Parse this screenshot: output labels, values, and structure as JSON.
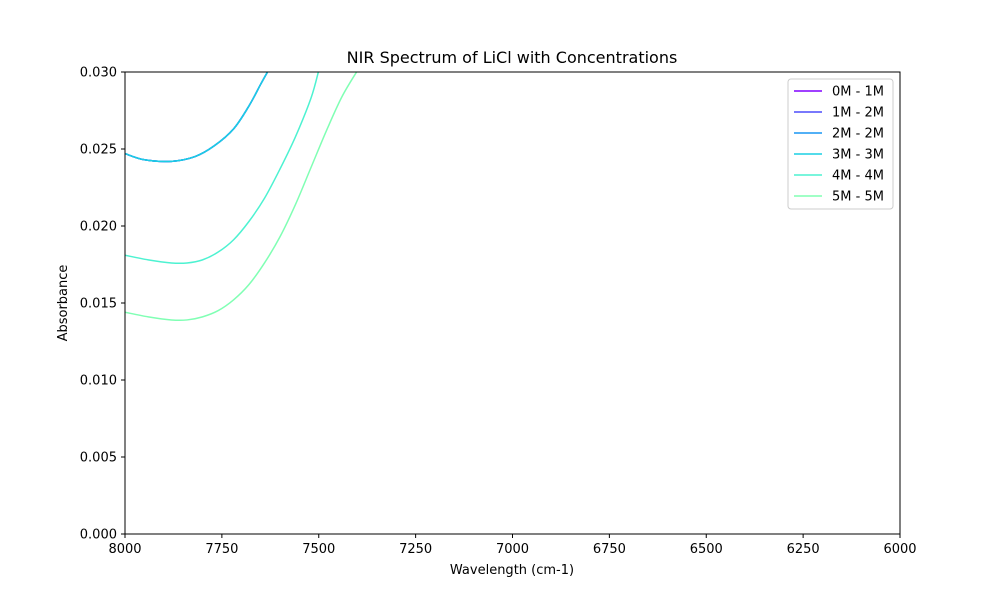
{
  "chart_data": {
    "type": "line",
    "title": "NIR Spectrum of LiCl with Concentrations",
    "xlabel": "Wavelength (cm-1)",
    "ylabel": "Absorbance",
    "xlim": [
      8000,
      6000
    ],
    "ylim": [
      0,
      0.03
    ],
    "x_inverted": true,
    "xticks": [
      8000,
      7750,
      7500,
      7250,
      7000,
      6750,
      6500,
      6250,
      6000
    ],
    "xtick_labels": [
      "8000",
      "7750",
      "7500",
      "7250",
      "7000",
      "6750",
      "6500",
      "6250",
      "6000"
    ],
    "yticks": [
      0,
      0.005,
      0.01,
      0.015,
      0.02,
      0.025,
      0.03
    ],
    "ytick_labels": [
      "0.000",
      "0.005",
      "0.010",
      "0.015",
      "0.020",
      "0.025",
      "0.030"
    ],
    "grid": false,
    "legend_position": "top-right",
    "series": [
      {
        "name": "0M - 1M",
        "color": "#8000ff",
        "x": [
          8000,
          7950,
          7880,
          7820,
          7770,
          7720,
          7680,
          7650,
          7630
        ],
        "y": [
          0.0247,
          0.0243,
          0.0242,
          0.0245,
          0.0252,
          0.0263,
          0.0278,
          0.0292,
          0.0301
        ]
      },
      {
        "name": "1M - 2M",
        "color": "#4d4dfc",
        "x": [
          8000,
          7950,
          7880,
          7820,
          7770,
          7720,
          7680,
          7650,
          7630
        ],
        "y": [
          0.0247,
          0.0243,
          0.0242,
          0.0245,
          0.0252,
          0.0263,
          0.0278,
          0.0292,
          0.0301
        ]
      },
      {
        "name": "2M - 2M",
        "color": "#1996f3",
        "x": [
          8000,
          7950,
          7880,
          7820,
          7770,
          7720,
          7680,
          7650,
          7630
        ],
        "y": [
          0.0247,
          0.0243,
          0.0242,
          0.0245,
          0.0252,
          0.0263,
          0.0278,
          0.0292,
          0.0301
        ]
      },
      {
        "name": "3M - 3M",
        "color": "#1acfe3",
        "x": [
          8000,
          7950,
          7880,
          7820,
          7770,
          7720,
          7680,
          7650,
          7630
        ],
        "y": [
          0.0247,
          0.0243,
          0.0242,
          0.0245,
          0.0252,
          0.0263,
          0.0278,
          0.0292,
          0.0301
        ]
      },
      {
        "name": "4M - 4M",
        "color": "#4df2d1",
        "x": [
          8000,
          7940,
          7880,
          7840,
          7800,
          7760,
          7720,
          7680,
          7640,
          7600,
          7560,
          7520,
          7500
        ],
        "y": [
          0.0181,
          0.0178,
          0.0176,
          0.0176,
          0.0178,
          0.0183,
          0.0191,
          0.0203,
          0.0218,
          0.0237,
          0.0258,
          0.0283,
          0.0301
        ]
      },
      {
        "name": "5M - 5M",
        "color": "#80ffb4",
        "x": [
          8000,
          7940,
          7880,
          7840,
          7800,
          7760,
          7720,
          7680,
          7640,
          7600,
          7560,
          7520,
          7480,
          7440,
          7400
        ],
        "y": [
          0.0144,
          0.0141,
          0.0139,
          0.0139,
          0.0141,
          0.0145,
          0.0152,
          0.0162,
          0.0176,
          0.0193,
          0.0214,
          0.0238,
          0.0262,
          0.0284,
          0.0301
        ]
      }
    ]
  }
}
